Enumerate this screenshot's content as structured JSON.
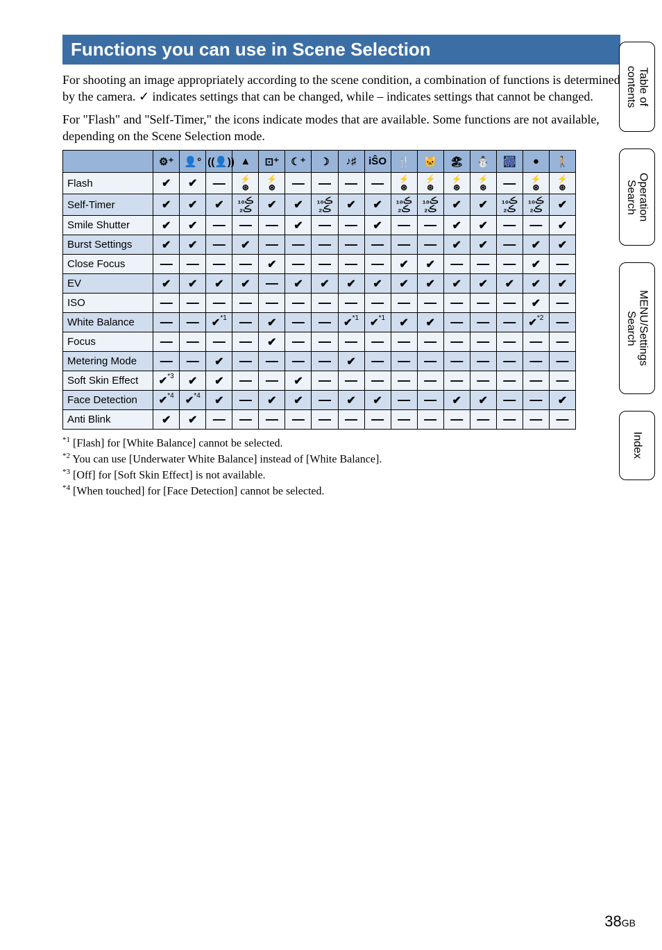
{
  "title": "Functions you can use in Scene Selection",
  "paragraphs": {
    "p1a": "For shooting an image appropriately according to the scene condition, a combination of functions is determined by the camera. ",
    "p1_check": "✓",
    "p1b": " indicates settings that can be changed, while – indicates settings that cannot be changed.",
    "p2": "For \"Flash\" and \"Self-Timer,\" the icons indicate modes that are available. Some functions are not available, depending on the Scene Selection mode."
  },
  "colors": {
    "title_bg": "#3b6ea5",
    "title_fg": "#ffffff",
    "header_bg": "#98b4d8",
    "row_light": "#eef3fa",
    "row_dark": "#d0ddee",
    "border": "#000000",
    "text": "#000000"
  },
  "glyphs": {
    "check": "✔",
    "dash": "—",
    "flash_pair": "⚡\n⊕",
    "timer_pair": "ⓞ₁₀\nⓞ₂",
    "star1": "*1",
    "star2": "*2",
    "star3": "*3",
    "star4": "*4"
  },
  "header_icons": [
    "⚙⁺",
    "👤°",
    "((👤))",
    "▲",
    "⊡⁺",
    "☾⁺",
    "☽",
    "♪♯",
    "iŜO",
    "🍴",
    "🐱",
    "🏖",
    "⛄",
    "🎆",
    "●",
    "🚶"
  ],
  "rows": [
    {
      "label": "Flash",
      "shade": "light",
      "cells": [
        "c",
        "c",
        "d",
        "fp",
        "fp",
        "d",
        "d",
        "d",
        "d",
        "fp",
        "fp",
        "fp",
        "fp",
        "d",
        "fp",
        "fp"
      ]
    },
    {
      "label": "Self-Timer",
      "shade": "dark",
      "cells": [
        "c",
        "c",
        "c",
        "tp",
        "c",
        "c",
        "tp",
        "c",
        "c",
        "tp",
        "tp",
        "c",
        "c",
        "tp",
        "tp",
        "c"
      ]
    },
    {
      "label": "Smile Shutter",
      "shade": "light",
      "cells": [
        "c",
        "c",
        "d",
        "d",
        "d",
        "c",
        "d",
        "d",
        "c",
        "d",
        "d",
        "c",
        "c",
        "d",
        "d",
        "c"
      ]
    },
    {
      "label": "Burst Settings",
      "shade": "dark",
      "cells": [
        "c",
        "c",
        "d",
        "c",
        "d",
        "d",
        "d",
        "d",
        "d",
        "d",
        "d",
        "c",
        "c",
        "d",
        "c",
        "c"
      ]
    },
    {
      "label": "Close Focus",
      "shade": "light",
      "cells": [
        "d",
        "d",
        "d",
        "d",
        "c",
        "d",
        "d",
        "d",
        "d",
        "c",
        "c",
        "d",
        "d",
        "d",
        "c",
        "d"
      ]
    },
    {
      "label": "EV",
      "shade": "dark",
      "cells": [
        "c",
        "c",
        "c",
        "c",
        "d",
        "c",
        "c",
        "c",
        "c",
        "c",
        "c",
        "c",
        "c",
        "c",
        "c",
        "c"
      ]
    },
    {
      "label": "ISO",
      "shade": "light",
      "cells": [
        "d",
        "d",
        "d",
        "d",
        "d",
        "d",
        "d",
        "d",
        "d",
        "d",
        "d",
        "d",
        "d",
        "d",
        "c",
        "d"
      ]
    },
    {
      "label": "White Balance",
      "shade": "dark",
      "cells": [
        "d",
        "d",
        "c1",
        "d",
        "c",
        "d",
        "d",
        "c1",
        "c1",
        "c",
        "c",
        "d",
        "d",
        "d",
        "c2",
        "d"
      ]
    },
    {
      "label": "Focus",
      "shade": "light",
      "cells": [
        "d",
        "d",
        "d",
        "d",
        "c",
        "d",
        "d",
        "d",
        "d",
        "d",
        "d",
        "d",
        "d",
        "d",
        "d",
        "d"
      ]
    },
    {
      "label": "Metering Mode",
      "shade": "dark",
      "cells": [
        "d",
        "d",
        "c",
        "d",
        "d",
        "d",
        "d",
        "c",
        "d",
        "d",
        "d",
        "d",
        "d",
        "d",
        "d",
        "d"
      ]
    },
    {
      "label": "Soft Skin Effect",
      "shade": "light",
      "cells": [
        "c3",
        "c",
        "c",
        "d",
        "d",
        "c",
        "d",
        "d",
        "d",
        "d",
        "d",
        "d",
        "d",
        "d",
        "d",
        "d"
      ]
    },
    {
      "label": "Face Detection",
      "shade": "dark",
      "cells": [
        "c4",
        "c4",
        "c",
        "d",
        "c",
        "c",
        "d",
        "c",
        "c",
        "d",
        "d",
        "c",
        "c",
        "d",
        "d",
        "c"
      ]
    },
    {
      "label": "Anti Blink",
      "shade": "light",
      "cells": [
        "c",
        "c",
        "d",
        "d",
        "d",
        "d",
        "d",
        "d",
        "d",
        "d",
        "d",
        "d",
        "d",
        "d",
        "d",
        "d"
      ]
    }
  ],
  "footnotes": [
    {
      "mark": "*1",
      "text": " [Flash] for [White Balance] cannot be selected."
    },
    {
      "mark": "*2",
      "text": " You can use [Underwater White Balance] instead of [White Balance]."
    },
    {
      "mark": "*3",
      "text": " [Off] for [Soft Skin Effect] is not available."
    },
    {
      "mark": "*4",
      "text": " [When touched] for [Face Detection] cannot be selected."
    }
  ],
  "side_tabs": [
    {
      "lines": [
        "Table of",
        "contents"
      ]
    },
    {
      "lines": [
        "Operation",
        "Search"
      ]
    },
    {
      "lines": [
        "MENU/Settings",
        "Search"
      ]
    },
    {
      "lines": [
        "Index"
      ]
    }
  ],
  "page_number": {
    "num": "38",
    "suffix": "GB"
  }
}
